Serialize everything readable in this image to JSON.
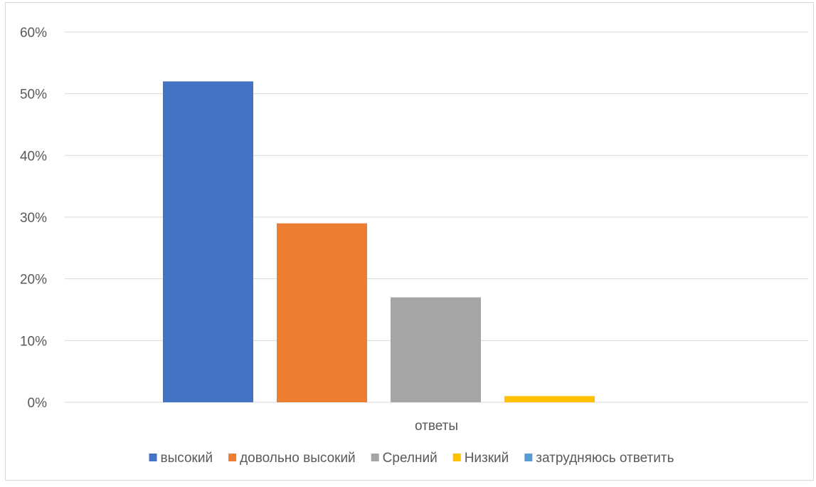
{
  "chart_data": {
    "type": "bar",
    "title": "",
    "xlabel": "",
    "ylabel": "",
    "categories": [
      "ответы"
    ],
    "series": [
      {
        "name": "высокий",
        "values": [
          0.52
        ],
        "color": "#4472C4"
      },
      {
        "name": "довольно высокий",
        "values": [
          0.29
        ],
        "color": "#ED7D31"
      },
      {
        "name": "Срелний",
        "values": [
          0.17
        ],
        "color": "#A5A5A5"
      },
      {
        "name": "Низкий",
        "values": [
          0.01
        ],
        "color": "#FFC000"
      },
      {
        "name": "затрудняюсь ответить",
        "values": [
          0.0
        ],
        "color": "#5B9BD5"
      }
    ],
    "ylim": [
      0,
      0.6
    ],
    "y_ticks": [
      "0%",
      "10%",
      "20%",
      "30%",
      "40%",
      "50%",
      "60%"
    ],
    "y_tick_values": [
      0,
      0.1,
      0.2,
      0.3,
      0.4,
      0.5,
      0.6
    ],
    "grid": true,
    "legend_position": "bottom"
  }
}
